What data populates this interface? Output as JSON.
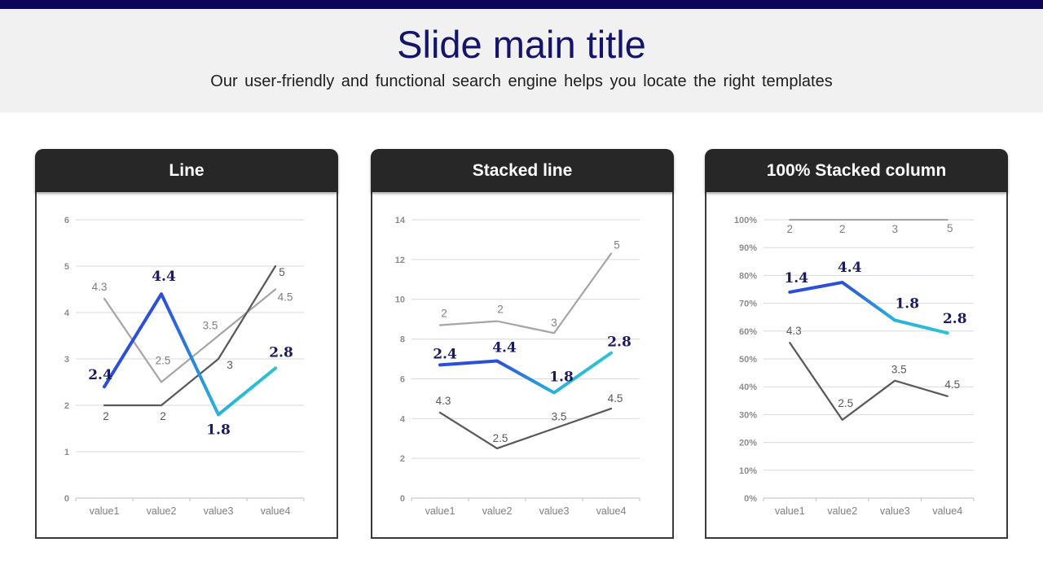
{
  "slide": {
    "title": "Slide main title",
    "subtitle": "Our user-friendly and functional search engine helps you locate the right templates"
  },
  "colors": {
    "top_bar": "#0C0558",
    "band_bg": "#F1F1F1",
    "title_navy": "#14146B",
    "panel_header_bg": "#272727",
    "panel_border": "#3A3A3A",
    "grid": "#D9D9D9",
    "label_navy": "#1A1A5E",
    "gray_light": "#A6A6A6",
    "gray_dark": "#595959",
    "blue": "#2B4FD9",
    "cyan": "#28B2DC",
    "teal": "#2CC3CE"
  },
  "chart_data": [
    {
      "type": "line",
      "title": "Line",
      "categories": [
        "value1",
        "value2",
        "value3",
        "value4"
      ],
      "ylim": [
        0,
        6
      ],
      "ytick_vals": [
        0,
        1,
        2,
        3,
        4,
        5,
        6
      ],
      "ytick_labels": [
        "0",
        "1",
        "2",
        "3",
        "4",
        "5",
        "6"
      ],
      "grid": "on",
      "legend": "none",
      "series": [
        {
          "name": "gray-light-series",
          "color": "gray_light",
          "values": [
            4.3,
            2.5,
            3.5,
            4.5
          ],
          "plotted": [
            4.3,
            2.5,
            3.5,
            4.5
          ],
          "labels": [
            "4.3",
            "2.5",
            "3.5",
            "4.5"
          ]
        },
        {
          "name": "gray-dark-series",
          "color": "gray_dark",
          "values": [
            2,
            2,
            3,
            5
          ],
          "plotted": [
            2,
            2,
            3,
            5
          ],
          "labels": [
            "2",
            "2",
            "3",
            "5"
          ]
        },
        {
          "name": "highlight-series",
          "color": "highlight",
          "values": [
            2.4,
            4.4,
            1.8,
            2.8
          ],
          "plotted": [
            2.4,
            4.4,
            1.8,
            2.8
          ],
          "labels": [
            "2.4",
            "4.4",
            "1.8",
            "2.8"
          ]
        }
      ]
    },
    {
      "type": "line",
      "title": "Stacked line",
      "categories": [
        "value1",
        "value2",
        "value3",
        "value4"
      ],
      "ylim": [
        0,
        14
      ],
      "ytick_vals": [
        0,
        2,
        4,
        6,
        8,
        10,
        12,
        14
      ],
      "ytick_labels": [
        "0",
        "2",
        "4",
        "6",
        "8",
        "10",
        "12",
        "14"
      ],
      "grid": "on",
      "legend": "none",
      "series": [
        {
          "name": "gray-dark-series",
          "color": "gray_dark",
          "values": [
            4.3,
            2.5,
            3.5,
            4.5
          ],
          "plotted": [
            4.3,
            2.5,
            3.5,
            4.5
          ],
          "labels": [
            "4.3",
            "2.5",
            "3.5",
            "4.5"
          ]
        },
        {
          "name": "gray-light-series",
          "color": "gray_light",
          "values": [
            2,
            2,
            3,
            5
          ],
          "plotted": [
            8.7,
            8.9,
            8.3,
            12.3
          ],
          "labels": [
            "2",
            "2",
            "3",
            "5"
          ]
        },
        {
          "name": "highlight-series",
          "color": "highlight",
          "values": [
            2.4,
            4.4,
            1.8,
            2.8
          ],
          "plotted": [
            6.7,
            6.9,
            5.3,
            7.3
          ],
          "labels": [
            "2.4",
            "4.4",
            "1.8",
            "2.8"
          ]
        }
      ]
    },
    {
      "type": "line",
      "title": "100% Stacked column",
      "categories": [
        "value1",
        "value2",
        "value3",
        "value4"
      ],
      "ylim": [
        0,
        100
      ],
      "ytick_vals": [
        0,
        10,
        20,
        30,
        40,
        50,
        60,
        70,
        80,
        90,
        100
      ],
      "ytick_labels": [
        "0%",
        "10%",
        "20%",
        "30%",
        "40%",
        "50%",
        "60%",
        "70%",
        "80%",
        "90%",
        "100%"
      ],
      "grid": "on",
      "legend": "none",
      "series": [
        {
          "name": "gray-dark-series",
          "color": "gray_dark",
          "values": [
            4.3,
            2.5,
            3.5,
            4.5
          ],
          "plotted": [
            55.8,
            28.1,
            42.2,
            36.6
          ],
          "labels": [
            "4.3",
            "2.5",
            "3.5",
            "4.5"
          ]
        },
        {
          "name": "gray-light-series",
          "color": "gray_light",
          "values": [
            2,
            2,
            3,
            5
          ],
          "plotted": [
            100,
            100,
            100,
            100
          ],
          "labels": [
            "2",
            "2",
            "3",
            "5"
          ]
        },
        {
          "name": "highlight-series",
          "color": "highlight",
          "values": [
            1.4,
            4.4,
            1.8,
            2.8
          ],
          "plotted": [
            74.0,
            77.5,
            63.9,
            59.3
          ],
          "labels": [
            "1.4",
            "4.4",
            "1.8",
            "2.8"
          ]
        }
      ]
    }
  ]
}
